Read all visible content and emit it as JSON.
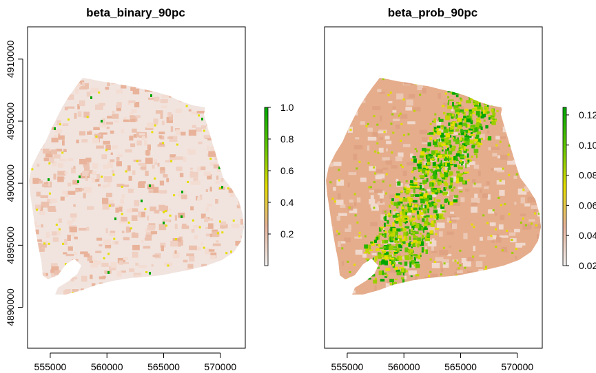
{
  "chart_data": [
    {
      "type": "heatmap",
      "title": "beta_binary_90pc",
      "xlim": [
        553000,
        572200
      ],
      "ylim": [
        4886700,
        4912600
      ],
      "x_ticks": [
        "555000",
        "560000",
        "565000",
        "570000"
      ],
      "y_ticks": [
        "4890000",
        "4895000",
        "4900000",
        "4905000",
        "4910000"
      ],
      "legend": {
        "range": [
          0.0,
          1.0
        ],
        "ticks": [
          "0.2",
          "0.4",
          "0.6",
          "0.8",
          "1.0"
        ],
        "colors": [
          "#f2f2f2",
          "#e8b39a",
          "#e5dd00",
          "#63c600",
          "#00a600"
        ]
      },
      "value_summary": "mostly near 0 (light pink) with scattered low values (tan) and a few isolated cells near 1 (green)"
    },
    {
      "type": "heatmap",
      "title": "beta_prob_90pc",
      "xlim": [
        553000,
        572200
      ],
      "ylim": [
        4886700,
        4912600
      ],
      "x_ticks": [
        "555000",
        "560000",
        "565000",
        "570000"
      ],
      "y_ticks": [],
      "legend": {
        "range": [
          0.02,
          0.125
        ],
        "ticks": [
          "0.02",
          "0.04",
          "0.06",
          "0.08",
          "0.10",
          "0.12"
        ],
        "colors": [
          "#f2f2f2",
          "#e8b39a",
          "#e5dd00",
          "#63c600",
          "#00a600"
        ]
      },
      "value_summary": "mostly around 0.04 (tan) with a green/yellow corridor of higher values running from the south-west to the north-east"
    }
  ]
}
